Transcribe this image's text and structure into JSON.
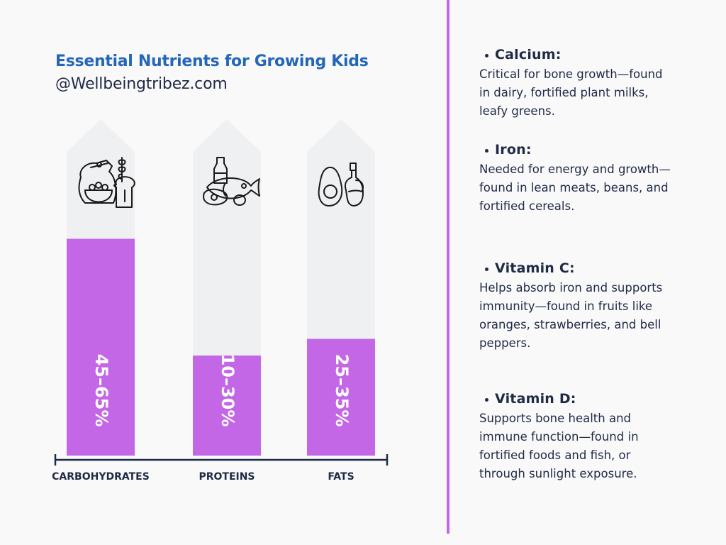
{
  "header": {
    "title": "Essential Nutrients for Growing Kids",
    "subtitle": "@Wellbeingtribez.com"
  },
  "colors": {
    "bar": "#c467e6",
    "arrow": "#eff0f2",
    "title": "#2467b8",
    "text": "#1f2a44"
  },
  "chart_data": {
    "type": "bar",
    "orientation": "vertical",
    "categories": [
      "CARBOHYDRATES",
      "PROTEINS",
      "FATS"
    ],
    "value_labels": [
      "45–65%",
      "10–30%",
      "25–35%"
    ],
    "ranges": [
      [
        45,
        65
      ],
      [
        10,
        30
      ],
      [
        25,
        35
      ]
    ],
    "icons": [
      "grains-bread-icon",
      "fish-meat-milk-icon",
      "avocado-oil-icon"
    ],
    "title": "",
    "xlabel": "",
    "ylabel": "",
    "ylim": [
      0,
      100
    ],
    "grid": false,
    "legend": "none"
  },
  "nutrients": [
    {
      "name": "Calcium:",
      "description": "Critical for bone growth—found in dairy, fortified plant milks, leafy greens."
    },
    {
      "name": "Iron:",
      "description": "Needed for energy and growth—found in lean meats, beans, and fortified cereals."
    },
    {
      "name": "Vitamin C:",
      "description": "Helps absorb iron and supports immunity—found in fruits like oranges, strawberries, and bell peppers."
    },
    {
      "name": "Vitamin D:",
      "description": "Supports bone health and immune function—found in fortified foods and fish, or through sunlight exposure."
    }
  ]
}
